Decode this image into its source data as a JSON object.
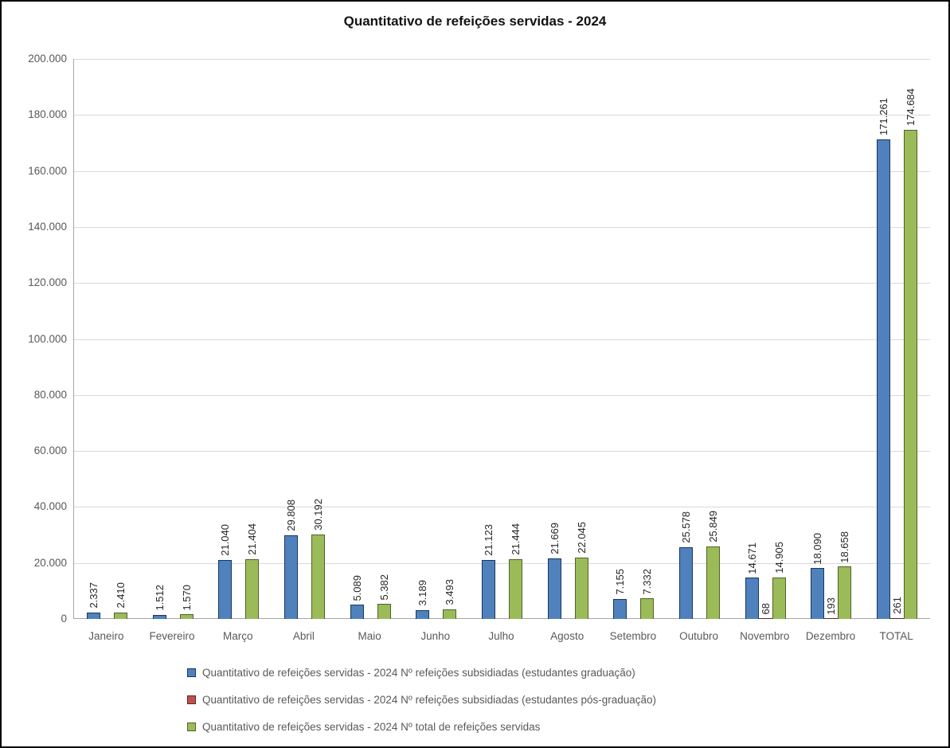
{
  "title": "Quantitativo de refeições servidas - 2024",
  "chart_data": {
    "type": "bar",
    "title": "Quantitativo de refeições servidas - 2024",
    "categories": [
      "Janeiro",
      "Fevereiro",
      "Março",
      "Abril",
      "Maio",
      "Junho",
      "Julho",
      "Agosto",
      "Setembro",
      "Outubro",
      "Novembro",
      "Dezembro",
      "TOTAL"
    ],
    "series": [
      {
        "key": "graduacao",
        "name": "Quantitativo de refeições servidas - 2024 Nº refeições subsidiadas (estudantes graduação)",
        "color": "#4f81bd",
        "border_color": "#17375e",
        "values": [
          2337,
          1512,
          21040,
          29808,
          5089,
          3189,
          21123,
          21669,
          7155,
          25578,
          14671,
          18090,
          171261
        ],
        "labels": [
          "2.337",
          "1.512",
          "21.040",
          "29.808",
          "5.089",
          "3.189",
          "21.123",
          "21.669",
          "7.155",
          "25.578",
          "14.671",
          "18.090",
          "171.261"
        ]
      },
      {
        "key": "pos-graduacao",
        "name": "Quantitativo de refeições servidas - 2024 Nº refeições subsidiadas (estudantes pós-graduação)",
        "color": "#c0504d",
        "border_color": "#632423",
        "values": [
          0,
          0,
          0,
          0,
          0,
          0,
          0,
          0,
          0,
          0,
          68,
          193,
          261
        ],
        "labels": [
          "",
          "",
          "",
          "",
          "",
          "",
          "",
          "",
          "",
          "",
          "68",
          "193",
          "261"
        ]
      },
      {
        "key": "total",
        "name": "Quantitativo de refeições servidas - 2024 Nº total de refeições servidas",
        "color": "#9bbb59",
        "border_color": "#4f6228",
        "values": [
          2410,
          1570,
          21404,
          30192,
          5382,
          3493,
          21444,
          22045,
          7332,
          25849,
          14905,
          18658,
          174684
        ],
        "labels": [
          "2.410",
          "1.570",
          "21.404",
          "30.192",
          "5.382",
          "3.493",
          "21.444",
          "22.045",
          "7.332",
          "25.849",
          "14.905",
          "18.658",
          "174.684"
        ]
      }
    ],
    "ylim": [
      0,
      200000
    ],
    "ytick_step": 20000,
    "yticks": [
      "0",
      "20.000",
      "40.000",
      "60.000",
      "80.000",
      "100.000",
      "120.000",
      "140.000",
      "160.000",
      "180.000",
      "200.000"
    ],
    "grid": true,
    "legend_position": "bottom",
    "value_label_rotation": 90
  },
  "colors": {
    "gridline": "#d9d9d9",
    "axis_line": "#a6a6a6",
    "tick_label": "#595959",
    "value_label": "#262626",
    "frame_border": "#000000"
  }
}
